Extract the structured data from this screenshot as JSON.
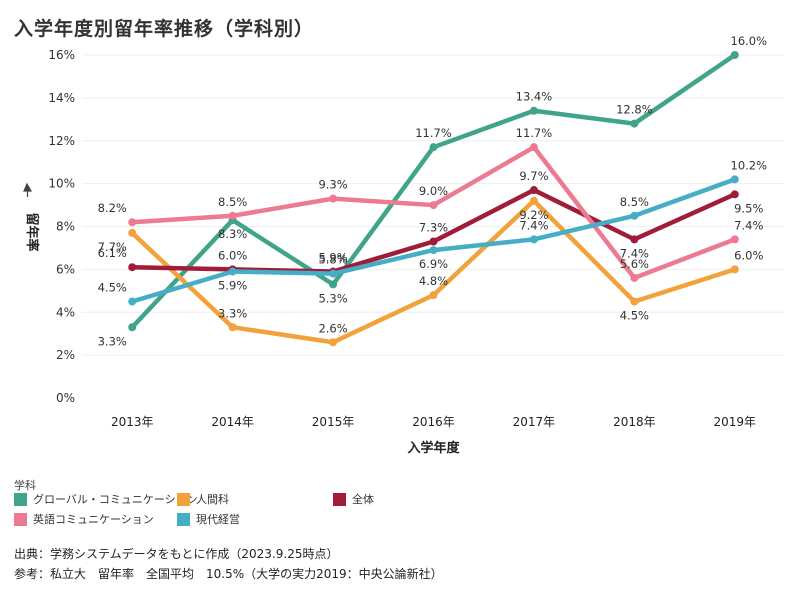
{
  "title": "入学年度別留年率推移（学科別）",
  "chart_data": {
    "type": "line",
    "categories": [
      "2013年",
      "2014年",
      "2015年",
      "2016年",
      "2017年",
      "2018年",
      "2019年"
    ],
    "xlabel": "入学年度",
    "ylabel": "留年率",
    "ylim": [
      0,
      16
    ],
    "yticks": [
      "0%",
      "2%",
      "4%",
      "6%",
      "8%",
      "10%",
      "12%",
      "14%",
      "16%"
    ],
    "grid": true,
    "series": [
      {
        "name": "グローバル・コミュニケーション",
        "color": "#40a48a",
        "values": [
          3.3,
          8.3,
          5.3,
          11.7,
          13.4,
          12.8,
          16.0
        ],
        "labels": [
          "3.3%",
          "8.3%",
          "5.3%",
          "11.7%",
          "13.4%",
          "12.8%",
          "16.0%"
        ]
      },
      {
        "name": "人間科",
        "color": "#f2a23a",
        "values": [
          7.7,
          3.3,
          2.6,
          4.8,
          9.2,
          4.5,
          6.0
        ],
        "labels": [
          "7.7%",
          "3.3%",
          "2.6%",
          "4.8%",
          "9.2%",
          "4.5%",
          "6.0%"
        ]
      },
      {
        "name": "全体",
        "color": "#a01d3a",
        "values": [
          6.1,
          6.0,
          5.9,
          7.3,
          9.7,
          7.4,
          9.5
        ],
        "labels": [
          "6.1%",
          "6.0%",
          "5.9%",
          "7.3%",
          "9.7%",
          "7.4%",
          "9.5%"
        ]
      },
      {
        "name": "英語コミュニケーション",
        "color": "#ec7a90",
        "values": [
          8.2,
          8.5,
          9.3,
          9.0,
          11.7,
          5.6,
          7.4
        ],
        "labels": [
          "8.2%",
          "8.5%",
          "9.3%",
          "9.0%",
          "11.7%",
          "5.6%",
          "7.4%"
        ]
      },
      {
        "name": "現代経営",
        "color": "#45aec6",
        "values": [
          4.5,
          5.9,
          5.8,
          6.9,
          7.4,
          8.5,
          10.2
        ],
        "labels": [
          "4.5%",
          "5.9%",
          "5.8%",
          "6.9%",
          "7.4%",
          "8.5%",
          "10.2%"
        ]
      }
    ]
  },
  "legend": {
    "title": "学科",
    "items": [
      {
        "label": "グローバル・コミュニケーション",
        "color": "#40a48a"
      },
      {
        "label": "人間科",
        "color": "#f2a23a"
      },
      {
        "label": "全体",
        "color": "#a01d3a"
      },
      {
        "label": "英語コミュニケーション",
        "color": "#ec7a90"
      },
      {
        "label": "現代経営",
        "color": "#45aec6"
      }
    ]
  },
  "footnotes": {
    "source": "出典：学務システムデータをもとに作成（2023.9.25時点）",
    "reference": "参考：私立大　留年率　全国平均　10.5%（大学の実力2019：中央公論新社）"
  }
}
